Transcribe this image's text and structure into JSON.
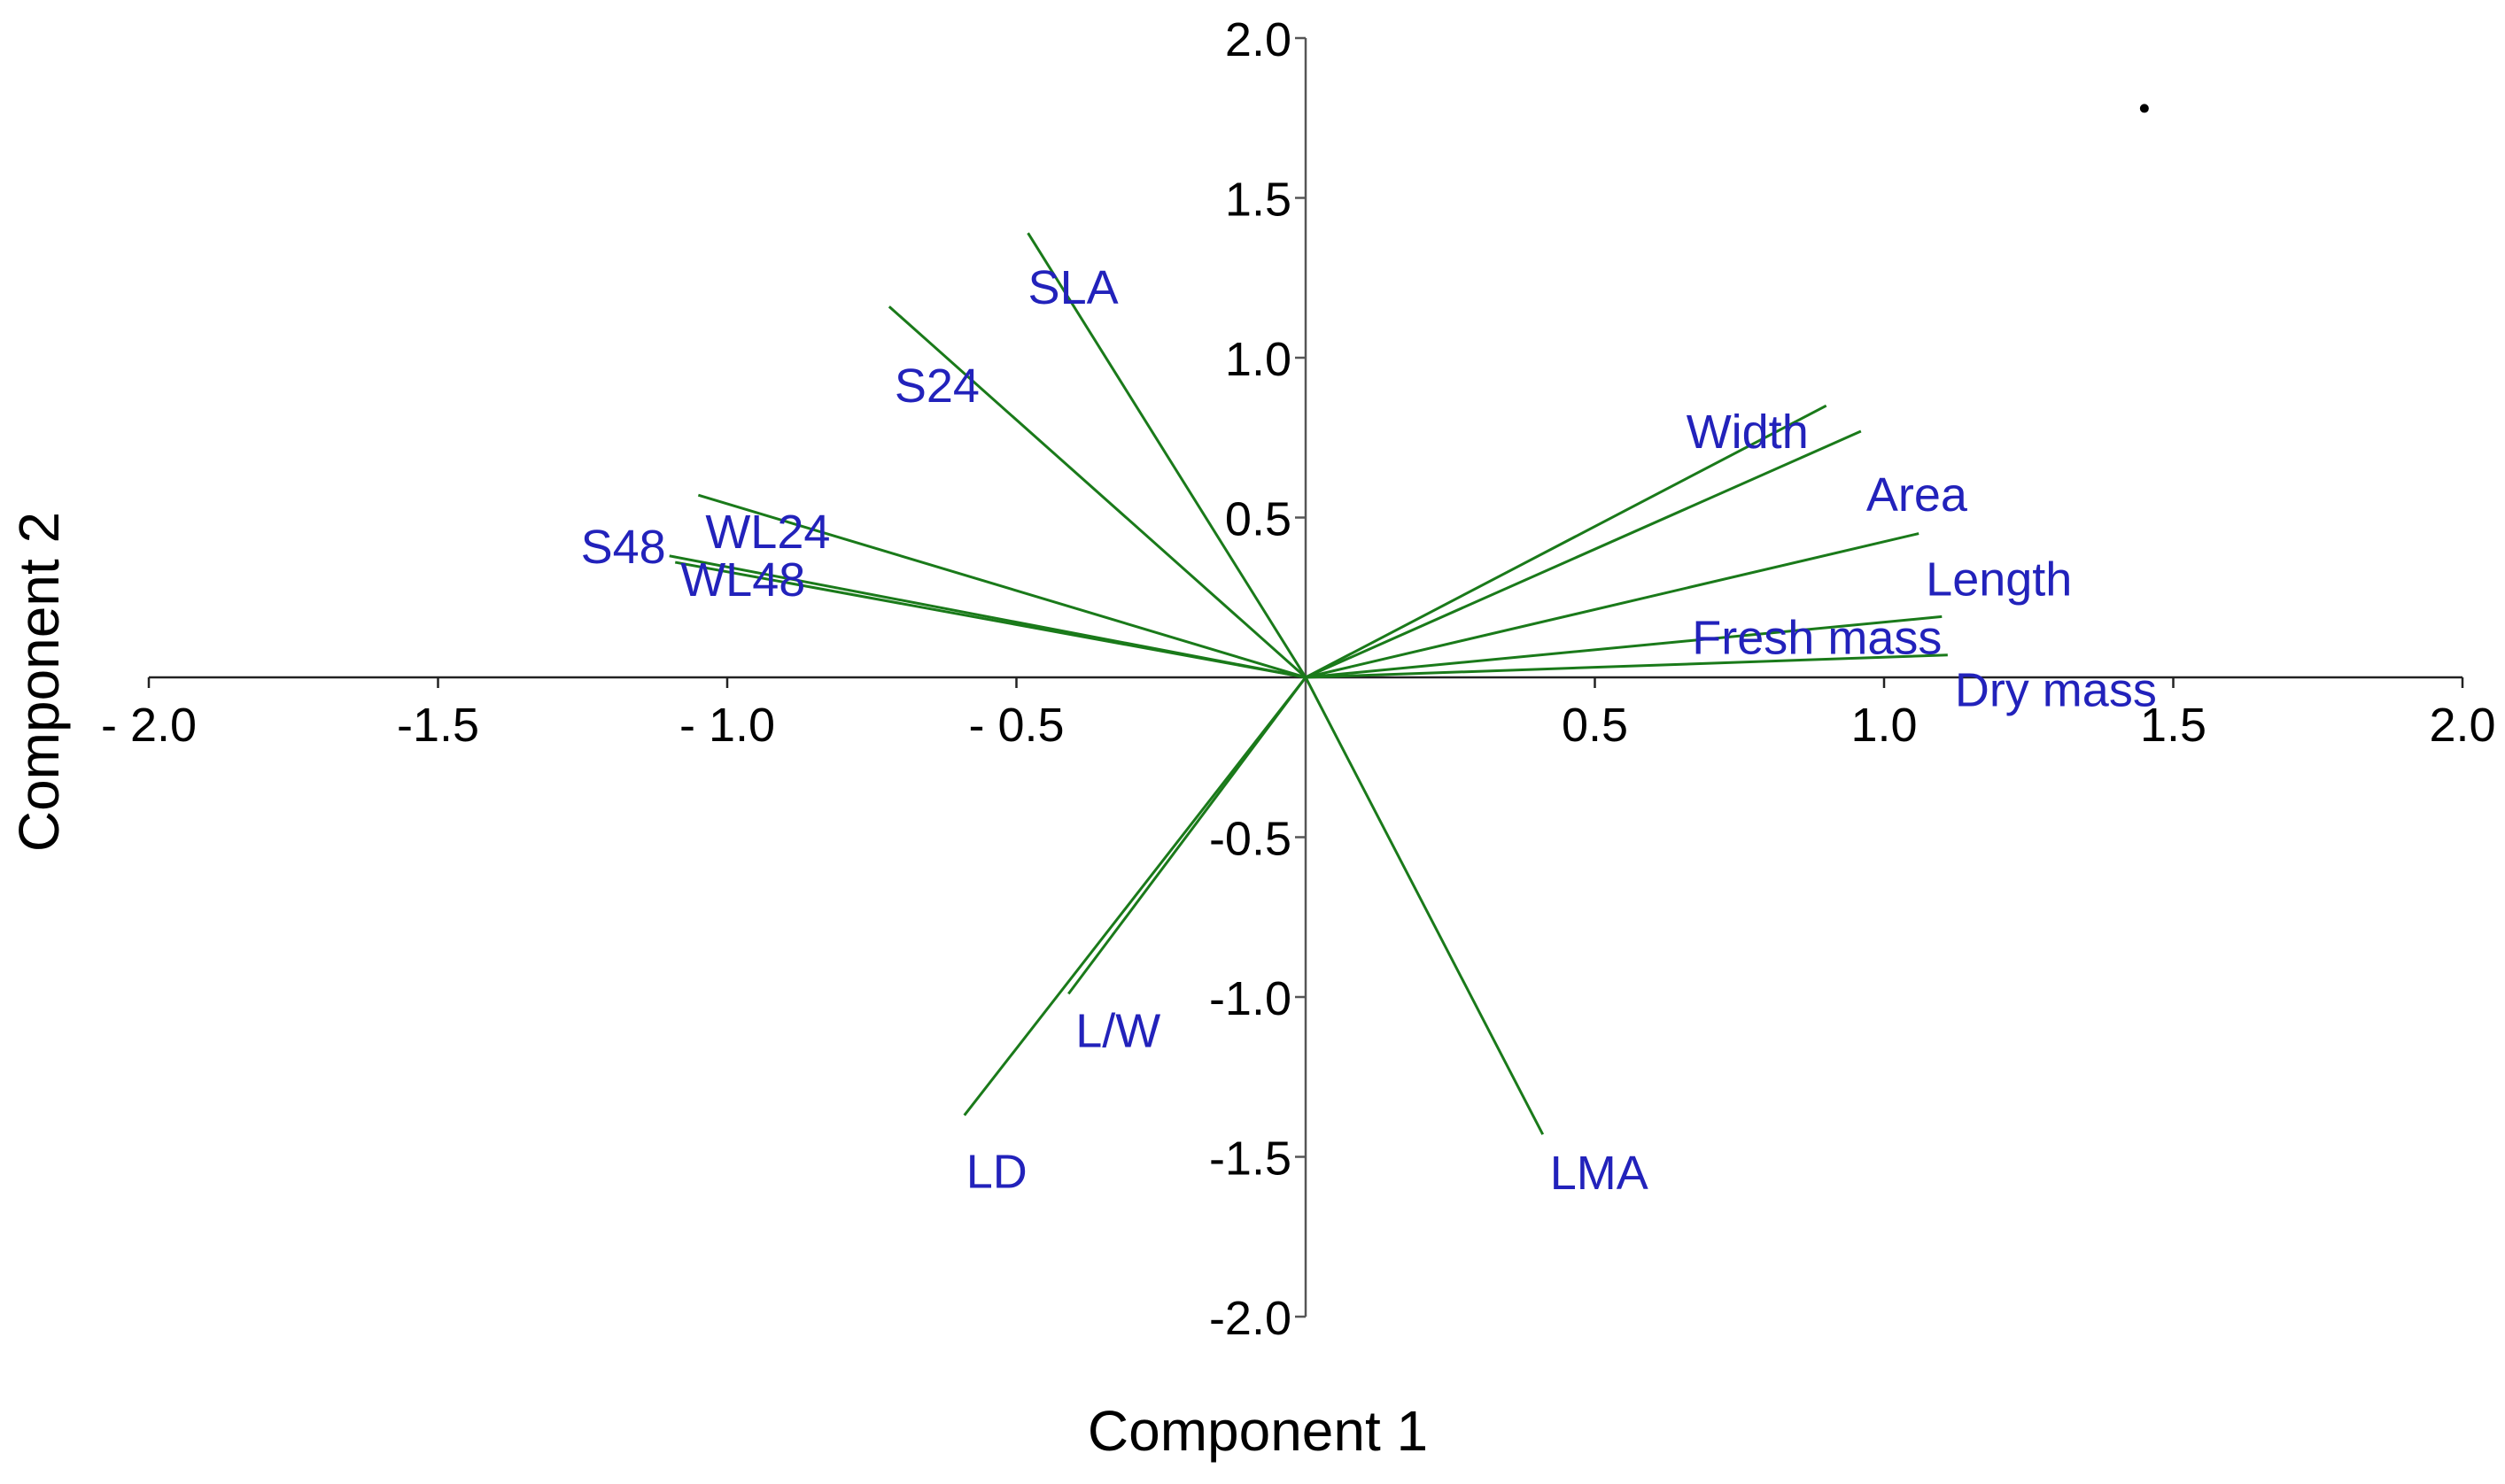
{
  "chart_data": {
    "type": "biplot",
    "xlabel": "Component 1",
    "ylabel": "Component 2",
    "xlim": [
      -2.0,
      2.0
    ],
    "ylim": [
      -2.0,
      2.0
    ],
    "x_ticks": [
      -2.0,
      -1.5,
      -1.0,
      -0.5,
      0.5,
      1.0,
      1.5,
      2.0
    ],
    "x_tick_labels": [
      "- 2.0",
      "-1.5",
      "- 1.0",
      "- 0.5",
      "0.5",
      "1.0",
      "1.5",
      "2.0"
    ],
    "y_ticks": [
      2.0,
      1.5,
      1.0,
      0.5,
      -0.5,
      -1.0,
      -1.5,
      -2.0
    ],
    "y_tick_labels": [
      "2.0",
      "1.5",
      "1.0",
      "0.5",
      "-0.5",
      "-1.0",
      "-1.5",
      "-2.0"
    ],
    "grid": false,
    "vector_color": "#1a7a1a",
    "label_color": "#2222bb",
    "vectors": [
      {
        "label": "SLA",
        "x": -0.48,
        "y": 1.39
      },
      {
        "label": "S24",
        "x": -0.72,
        "y": 1.16
      },
      {
        "label": "WL24",
        "x": -1.05,
        "y": 0.57
      },
      {
        "label": "S48",
        "x": -1.1,
        "y": 0.38
      },
      {
        "label": "WL48",
        "x": -1.09,
        "y": 0.36
      },
      {
        "label": "Width",
        "x": 0.9,
        "y": 0.85
      },
      {
        "label": "Area",
        "x": 0.96,
        "y": 0.77
      },
      {
        "label": "Length",
        "x": 1.06,
        "y": 0.45
      },
      {
        "label": "Fresh mass",
        "x": 1.1,
        "y": 0.19
      },
      {
        "label": "Dry mass",
        "x": 1.11,
        "y": 0.07
      },
      {
        "label": "L/W",
        "x": -0.41,
        "y": -0.99
      },
      {
        "label": "LD",
        "x": -0.59,
        "y": -1.37
      },
      {
        "label": "LMA",
        "x": 0.41,
        "y": -1.43
      }
    ],
    "points": [
      {
        "x": 1.45,
        "y": 1.78
      }
    ]
  }
}
